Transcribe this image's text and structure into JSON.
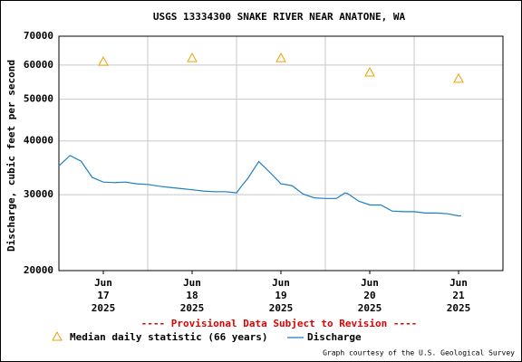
{
  "chart_data": {
    "type": "line",
    "title": "USGS 13334300 SNAKE RIVER NEAR ANATONE, WA",
    "y_label": "Discharge, cubic feet per second",
    "annotation": "---- Provisional Data Subject to Revision ----",
    "credit": "Graph courtesy of the U.S. Geological Survey",
    "log_y": true,
    "grid": true,
    "xlim": [
      17,
      22
    ],
    "xticks": [
      {
        "value": 17.5,
        "label": "Jun\n17\n2025"
      },
      {
        "value": 18.5,
        "label": "Jun\n18\n2025"
      },
      {
        "value": 19.5,
        "label": "Jun\n19\n2025"
      },
      {
        "value": 20.5,
        "label": "Jun\n20\n2025"
      },
      {
        "value": 21.5,
        "label": "Jun\n21\n2025"
      }
    ],
    "xminorticks": [
      18,
      19,
      20,
      21
    ],
    "ylim": [
      20000,
      70000
    ],
    "yticks": [
      20000,
      30000,
      40000,
      50000,
      60000,
      70000
    ],
    "series": [
      {
        "name": "Median daily statistic (66 years)",
        "color": "#f0a000",
        "marker": "triangle",
        "x": [
          17.5,
          18.5,
          19.5,
          20.5,
          21.5
        ],
        "values": [
          61100,
          62300,
          62300,
          57700,
          55800
        ]
      },
      {
        "name": "Discharge",
        "color": "#1f7fc0",
        "marker": "none",
        "x": [
          17.0,
          17.125,
          17.25,
          17.375,
          17.5,
          17.625,
          17.75,
          17.875,
          18.0,
          18.125,
          18.25,
          18.375,
          18.5,
          18.625,
          18.75,
          18.875,
          19.0,
          19.06,
          19.125,
          19.25,
          19.375,
          19.5,
          19.625,
          19.75,
          19.875,
          20.0,
          20.125,
          20.22,
          20.25,
          20.375,
          20.5,
          20.625,
          20.75,
          20.875,
          21.0,
          21.125,
          21.25,
          21.375,
          21.5,
          21.53
        ],
        "values": [
          35000,
          37000,
          35900,
          32900,
          32100,
          32000,
          32100,
          31800,
          31700,
          31400,
          31200,
          31000,
          30800,
          30600,
          30500,
          30500,
          30300,
          31500,
          32700,
          35800,
          33800,
          31800,
          31500,
          30100,
          29500,
          29400,
          29400,
          30300,
          30200,
          29000,
          28400,
          28400,
          27500,
          27400,
          27400,
          27200,
          27200,
          27100,
          26800,
          26800
        ]
      }
    ]
  }
}
